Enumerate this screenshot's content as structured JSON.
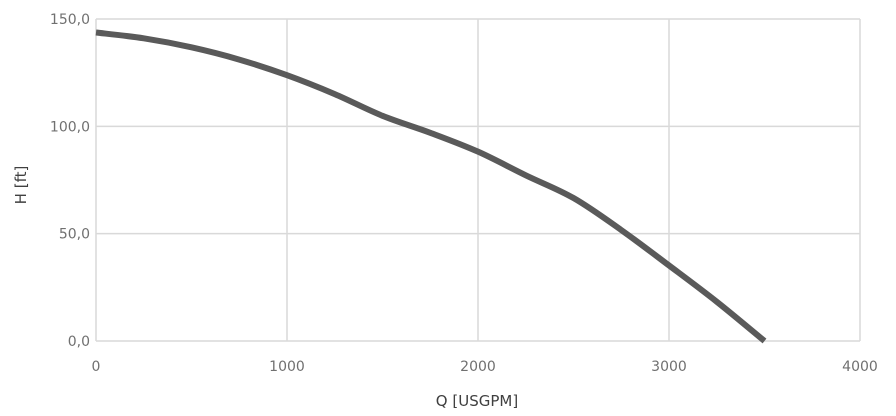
{
  "chart_data": {
    "type": "line",
    "xlabel": "Q [USGPM]",
    "ylabel": "H [ft]",
    "xlim": [
      0,
      4000
    ],
    "ylim": [
      0,
      150
    ],
    "x_ticks": [
      0,
      1000,
      2000,
      3000,
      4000
    ],
    "x_tick_labels": [
      "0",
      "1000",
      "2000",
      "3000",
      "4000"
    ],
    "y_ticks": [
      0,
      50,
      100,
      150
    ],
    "y_tick_labels": [
      "0,0",
      "50,0",
      "100,0",
      "150,0"
    ],
    "grid": true,
    "series": [
      {
        "color": "#5a5a5a",
        "x": [
          0,
          250,
          500,
          750,
          1000,
          1250,
          1500,
          1750,
          2000,
          2250,
          2500,
          2750,
          3000,
          3250,
          3500
        ],
        "y": [
          143.7,
          141.0,
          136.8,
          131.1,
          123.8,
          115.0,
          104.9,
          97.0,
          88.2,
          77.2,
          66.6,
          51.7,
          35.2,
          18.3,
          0
        ]
      }
    ]
  }
}
